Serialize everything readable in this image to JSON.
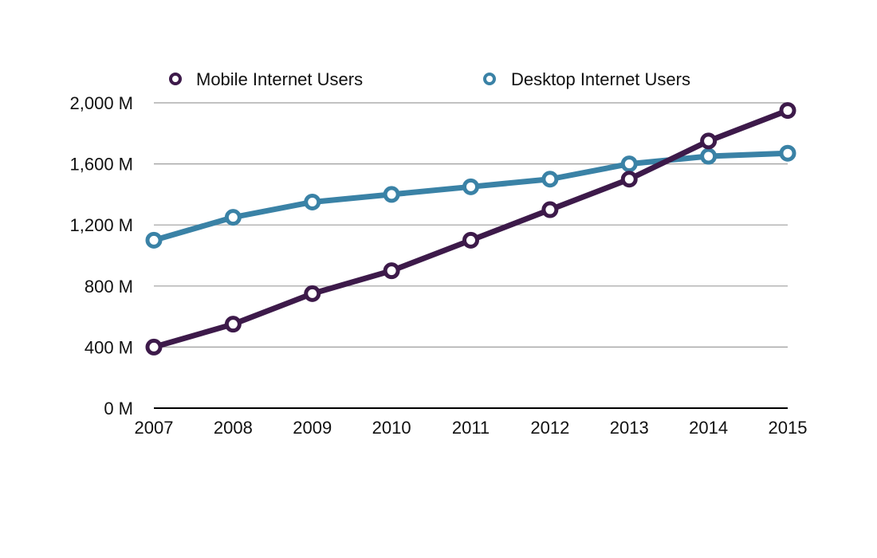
{
  "chart_data": {
    "type": "line",
    "title": "",
    "xlabel": "",
    "ylabel": "",
    "categories": [
      "2007",
      "2008",
      "2009",
      "2010",
      "2011",
      "2012",
      "2013",
      "2014",
      "2015"
    ],
    "series": [
      {
        "name": "Mobile Internet Users",
        "color": "#3d1a4a",
        "values": [
          400,
          550,
          750,
          900,
          1100,
          1300,
          1500,
          1750,
          1950
        ]
      },
      {
        "name": "Desktop Internet Users",
        "color": "#3a82a6",
        "values": [
          1100,
          1250,
          1350,
          1400,
          1450,
          1500,
          1600,
          1650,
          1670
        ]
      }
    ],
    "ylim": [
      0,
      2000
    ],
    "yticks": [
      0,
      400,
      800,
      1200,
      1600,
      2000
    ],
    "ytick_labels": [
      "0 M",
      "400 M",
      "800 M",
      "1,200 M",
      "1,600 M",
      "2,000 M"
    ],
    "grid": true,
    "legend_position": "top"
  }
}
